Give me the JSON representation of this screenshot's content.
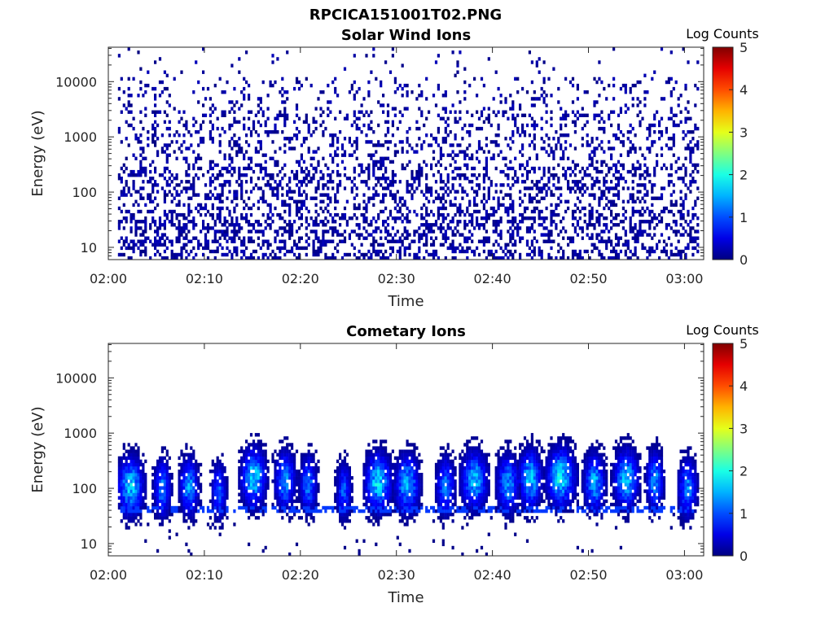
{
  "figure": {
    "title": "RPCICA151001T02.PNG"
  },
  "chart_data": [
    {
      "type": "heatmap",
      "title": "Solar Wind Ions",
      "xlabel": "Time",
      "ylabel": "Energy (eV)",
      "xticks": [
        "02:00",
        "02:10",
        "02:20",
        "02:30",
        "02:40",
        "02:50",
        "03:00"
      ],
      "xlim_minutes": [
        0,
        62
      ],
      "yscale": "log",
      "yticks": [
        10,
        100,
        1000,
        10000
      ],
      "ytick_labels": [
        "10",
        "100",
        "1000",
        "10000"
      ],
      "ylim": [
        6,
        42000
      ],
      "colorbar": {
        "label": "Log Counts",
        "ticks": [
          "0",
          "1",
          "2",
          "3",
          "4",
          "5"
        ],
        "range": [
          0,
          5
        ],
        "colormap": "jet"
      },
      "signal": {
        "description_values": "sparse single counts (log counts ~0-0.3) scattered from ~6 eV to ~30000 eV, denser below 300 eV",
        "time_range_minutes": [
          1,
          61.5
        ],
        "max_log_counts": 0.3
      }
    },
    {
      "type": "heatmap",
      "title": "Cometary Ions",
      "xlabel": "Time",
      "ylabel": "Energy (eV)",
      "xticks": [
        "02:00",
        "02:10",
        "02:20",
        "02:30",
        "02:40",
        "02:50",
        "03:00"
      ],
      "xlim_minutes": [
        0,
        62
      ],
      "yscale": "log",
      "yticks": [
        10,
        100,
        1000,
        10000
      ],
      "ytick_labels": [
        "10",
        "100",
        "1000",
        "10000"
      ],
      "ylim": [
        6,
        42000
      ],
      "colorbar": {
        "label": "Log Counts",
        "ticks": [
          "0",
          "1",
          "2",
          "3",
          "4",
          "5"
        ],
        "range": [
          0,
          5
        ],
        "colormap": "jet"
      },
      "bursts": [
        {
          "t": 2.2,
          "w": 1.4,
          "peak_ev": 110,
          "max_log": 1.9
        },
        {
          "t": 5.5,
          "w": 0.9,
          "peak_ev": 100,
          "max_log": 1.4
        },
        {
          "t": 8.3,
          "w": 1.0,
          "peak_ev": 110,
          "max_log": 1.6
        },
        {
          "t": 11.4,
          "w": 0.8,
          "peak_ev": 90,
          "max_log": 1.2
        },
        {
          "t": 15.0,
          "w": 1.3,
          "peak_ev": 160,
          "max_log": 2.0
        },
        {
          "t": 18.3,
          "w": 1.1,
          "peak_ev": 140,
          "max_log": 1.6
        },
        {
          "t": 20.7,
          "w": 0.9,
          "peak_ev": 120,
          "max_log": 1.4
        },
        {
          "t": 24.4,
          "w": 0.8,
          "peak_ev": 90,
          "max_log": 1.2
        },
        {
          "t": 28.0,
          "w": 1.4,
          "peak_ev": 130,
          "max_log": 2.0
        },
        {
          "t": 31.0,
          "w": 1.3,
          "peak_ev": 120,
          "max_log": 1.8
        },
        {
          "t": 35.0,
          "w": 1.0,
          "peak_ev": 110,
          "max_log": 1.4
        },
        {
          "t": 38.0,
          "w": 1.4,
          "peak_ev": 140,
          "max_log": 1.8
        },
        {
          "t": 41.5,
          "w": 1.2,
          "peak_ev": 120,
          "max_log": 1.6
        },
        {
          "t": 43.8,
          "w": 1.2,
          "peak_ev": 150,
          "max_log": 1.9
        },
        {
          "t": 47.0,
          "w": 1.5,
          "peak_ev": 160,
          "max_log": 2.1
        },
        {
          "t": 50.5,
          "w": 1.1,
          "peak_ev": 130,
          "max_log": 1.7
        },
        {
          "t": 53.8,
          "w": 1.3,
          "peak_ev": 150,
          "max_log": 1.9
        },
        {
          "t": 56.8,
          "w": 0.9,
          "peak_ev": 140,
          "max_log": 1.6
        },
        {
          "t": 60.2,
          "w": 1.0,
          "peak_ev": 100,
          "max_log": 1.5
        }
      ]
    }
  ]
}
